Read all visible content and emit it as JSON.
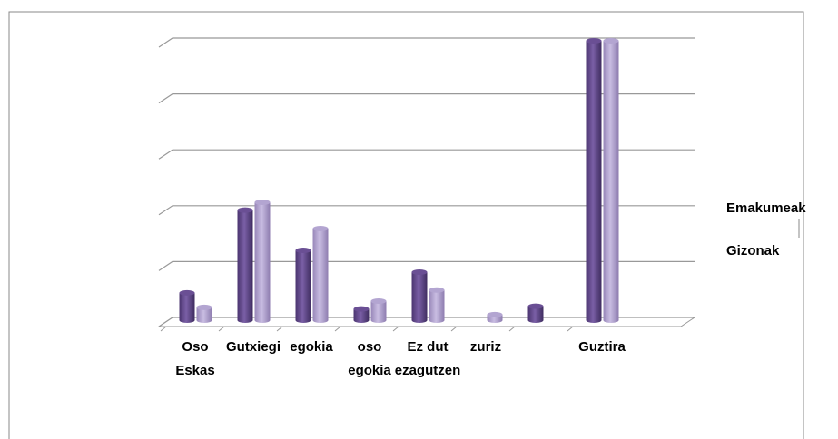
{
  "chart_data": {
    "type": "bar",
    "categories": [
      "Oso Eskas",
      "Gutxiegi",
      "egokia",
      "oso egokia",
      "Ez dut ezagutzen",
      "zuriz",
      null,
      "Guztira"
    ],
    "series": [
      {
        "name": "Emakumeak",
        "color": "#6a4f94",
        "values": [
          0.49,
          1.97,
          1.25,
          0.2,
          0.86,
          0,
          0.25,
          5.0
        ]
      },
      {
        "name": "Gizonak",
        "color": "#b3a5d1",
        "values": [
          0.23,
          2.11,
          1.64,
          0.34,
          0.54,
          0.1,
          0,
          5.0
        ]
      }
    ],
    "ylim": [
      0,
      5
    ],
    "yticks": [
      0,
      1,
      2,
      3,
      4,
      5
    ],
    "grid": true
  }
}
